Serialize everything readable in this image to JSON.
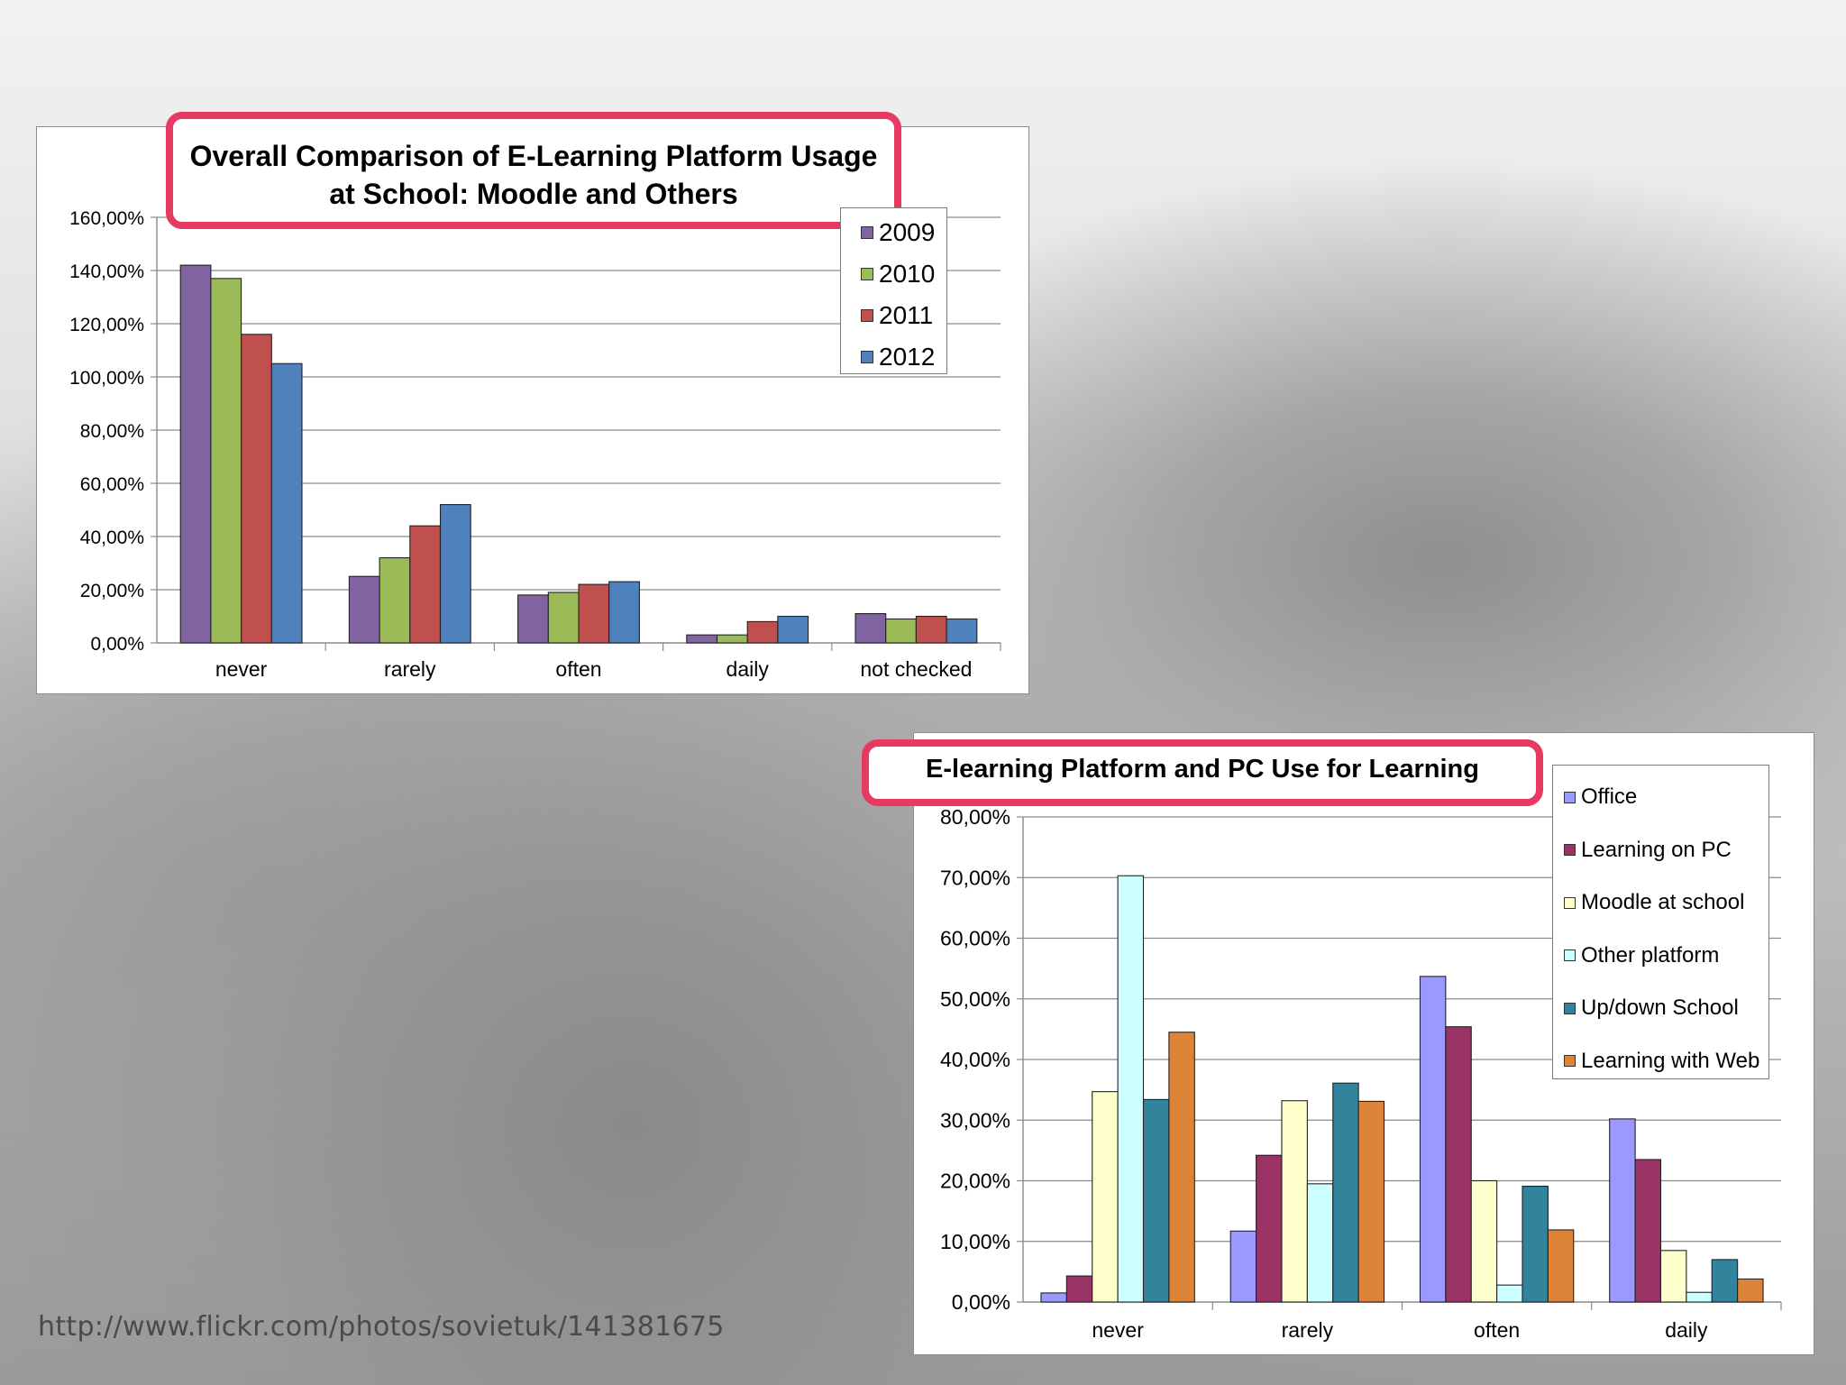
{
  "chart_data": [
    {
      "type": "bar",
      "title": "Overall Comparison of E-Learning Platform Usage at School: Moodle and Others",
      "categories": [
        "never",
        "rarely",
        "often",
        "daily",
        "not checked"
      ],
      "series": [
        {
          "name": "2009",
          "color": "#8064a2",
          "values": [
            1.42,
            0.25,
            0.18,
            0.03,
            0.11
          ]
        },
        {
          "name": "2010",
          "color": "#9bbb59",
          "values": [
            1.37,
            0.32,
            0.19,
            0.03,
            0.09
          ]
        },
        {
          "name": "2011",
          "color": "#c0504d",
          "values": [
            1.16,
            0.44,
            0.22,
            0.08,
            0.1
          ]
        },
        {
          "name": "2012",
          "color": "#4f81bd",
          "values": [
            1.05,
            0.52,
            0.23,
            0.1,
            0.09
          ]
        }
      ],
      "yticks": [
        "0,00%",
        "20,00%",
        "40,00%",
        "60,00%",
        "80,00%",
        "100,00%",
        "120,00%",
        "140,00%",
        "160,00%"
      ],
      "ylim": [
        0,
        1.6
      ],
      "grid": true,
      "legend": "top-right"
    },
    {
      "type": "bar",
      "title": "E-learning Platform and PC Use for Learning",
      "categories": [
        "never",
        "rarely",
        "often",
        "daily"
      ],
      "series": [
        {
          "name": "Office",
          "color": "#9999ff",
          "values": [
            0.015,
            0.117,
            0.537,
            0.302
          ]
        },
        {
          "name": "Learning on PC",
          "color": "#993366",
          "values": [
            0.043,
            0.242,
            0.454,
            0.235
          ]
        },
        {
          "name": "Moodle at school",
          "color": "#ffffcc",
          "values": [
            0.347,
            0.332,
            0.2,
            0.085
          ]
        },
        {
          "name": "Other platform",
          "color": "#ccffff",
          "values": [
            0.703,
            0.195,
            0.028,
            0.016
          ]
        },
        {
          "name": "Up/down School",
          "color": "#31849b",
          "values": [
            0.334,
            0.361,
            0.191,
            0.07
          ]
        },
        {
          "name": "Learning with Web",
          "color": "#dd8439",
          "values": [
            0.445,
            0.331,
            0.119,
            0.038
          ]
        }
      ],
      "yticks": [
        "0,00%",
        "10,00%",
        "20,00%",
        "30,00%",
        "40,00%",
        "50,00%",
        "60,00%",
        "70,00%",
        "80,00%"
      ],
      "ylim": [
        0,
        0.8
      ],
      "grid": true,
      "legend": "right"
    }
  ],
  "source_url": "http://www.flickr.com/photos/sovietuk/141381675"
}
